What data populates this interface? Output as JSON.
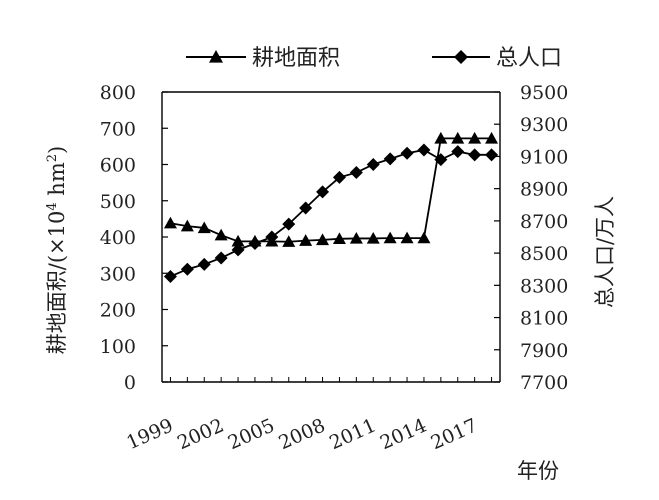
{
  "chart_data": {
    "type": "line",
    "x": [
      1999,
      2000,
      2001,
      2002,
      2003,
      2004,
      2005,
      2006,
      2007,
      2008,
      2009,
      2010,
      2011,
      2012,
      2013,
      2014,
      2015,
      2016,
      2017,
      2018
    ],
    "x_tick_labels": [
      "1999",
      "2002",
      "2005",
      "2008",
      "2011",
      "2014",
      "2017"
    ],
    "x_tick_values": [
      1999,
      2002,
      2005,
      2008,
      2011,
      2014,
      2017
    ],
    "xlabel": "年份",
    "ylabel_left": "耕地面积/(×10",
    "ylabel_left_sup": "4",
    "ylabel_left_unit": " hm",
    "ylabel_left_unit_sup": "2",
    "ylabel_left_close": ")",
    "ylabel_right": "总人口/万人",
    "ylim_left": [
      0,
      800
    ],
    "ylim_right": [
      7700,
      9500
    ],
    "y_ticks_left": [
      "0",
      "100",
      "200",
      "300",
      "400",
      "500",
      "600",
      "700",
      "800"
    ],
    "y_ticks_right": [
      "7700",
      "7900",
      "8100",
      "8300",
      "8500",
      "8700",
      "8900",
      "9100",
      "9300",
      "9500"
    ],
    "legend_position": "top",
    "grid": false,
    "series": [
      {
        "name": "耕地面积",
        "axis": "left",
        "marker": "triangle",
        "values": [
          438,
          430,
          425,
          405,
          388,
          388,
          388,
          387,
          390,
          392,
          395,
          396,
          396,
          397,
          397,
          397,
          672,
          672,
          672,
          672
        ]
      },
      {
        "name": "总人口",
        "axis": "right",
        "marker": "diamond",
        "values": [
          8355,
          8400,
          8430,
          8470,
          8520,
          8560,
          8600,
          8680,
          8780,
          8880,
          8970,
          9000,
          9050,
          9085,
          9120,
          9140,
          9080,
          9130,
          9110,
          9110
        ]
      }
    ]
  }
}
